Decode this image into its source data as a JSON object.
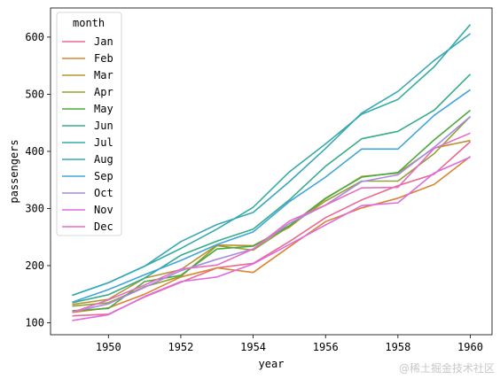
{
  "watermark": "@稀土掘金技术社区",
  "chart_data": {
    "type": "line",
    "xlabel": "year",
    "ylabel": "passengers",
    "xlim": [
      1948.4,
      1960.6
    ],
    "ylim": [
      79,
      651
    ],
    "x_ticks": [
      1950,
      1952,
      1954,
      1956,
      1958,
      1960
    ],
    "y_ticks": [
      100,
      200,
      300,
      400,
      500,
      600
    ],
    "grid": false,
    "legend": {
      "title": "month",
      "position": "top-left"
    },
    "x": [
      1949,
      1950,
      1951,
      1952,
      1953,
      1954,
      1955,
      1956,
      1957,
      1958,
      1959,
      1960
    ],
    "series": [
      {
        "name": "Jan",
        "color": "#e96b8e",
        "values": [
          112,
          115,
          145,
          171,
          196,
          204,
          242,
          284,
          315,
          340,
          360,
          417
        ]
      },
      {
        "name": "Feb",
        "color": "#db8433",
        "values": [
          118,
          126,
          150,
          180,
          196,
          188,
          233,
          277,
          301,
          318,
          342,
          391
        ]
      },
      {
        "name": "Mar",
        "color": "#b89333",
        "values": [
          132,
          141,
          178,
          193,
          236,
          235,
          267,
          317,
          356,
          362,
          406,
          419
        ]
      },
      {
        "name": "Apr",
        "color": "#93a132",
        "values": [
          129,
          135,
          163,
          181,
          235,
          227,
          269,
          313,
          348,
          348,
          396,
          461
        ]
      },
      {
        "name": "May",
        "color": "#4ba93c",
        "values": [
          121,
          125,
          172,
          183,
          229,
          234,
          270,
          318,
          355,
          363,
          420,
          472
        ]
      },
      {
        "name": "Jun",
        "color": "#35ad8a",
        "values": [
          135,
          149,
          178,
          218,
          243,
          264,
          315,
          374,
          422,
          435,
          472,
          535
        ]
      },
      {
        "name": "Jul",
        "color": "#36aca3",
        "values": [
          148,
          170,
          199,
          230,
          264,
          302,
          364,
          413,
          465,
          491,
          548,
          622
        ]
      },
      {
        "name": "Aug",
        "color": "#38a8b9",
        "values": [
          148,
          170,
          199,
          242,
          272,
          293,
          347,
          405,
          467,
          505,
          559,
          606
        ]
      },
      {
        "name": "Sep",
        "color": "#41a4dc",
        "values": [
          136,
          158,
          184,
          209,
          237,
          259,
          312,
          355,
          404,
          404,
          463,
          508
        ]
      },
      {
        "name": "Oct",
        "color": "#a48ce4",
        "values": [
          119,
          133,
          162,
          191,
          211,
          229,
          274,
          306,
          347,
          359,
          407,
          461
        ]
      },
      {
        "name": "Nov",
        "color": "#e06ae4",
        "values": [
          104,
          114,
          146,
          172,
          180,
          203,
          237,
          271,
          305,
          310,
          362,
          390
        ]
      },
      {
        "name": "Dec",
        "color": "#e96bc4",
        "values": [
          118,
          140,
          166,
          194,
          201,
          229,
          278,
          306,
          336,
          337,
          405,
          432
        ]
      }
    ]
  }
}
